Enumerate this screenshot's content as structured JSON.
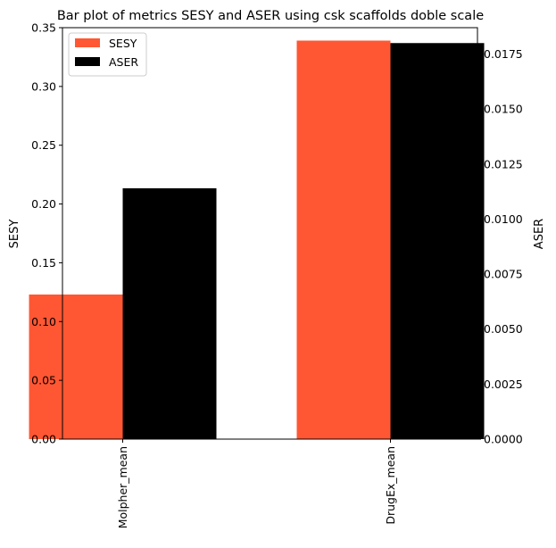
{
  "chart_data": {
    "type": "bar",
    "title": "Bar plot of metrics SESY and ASER using csk scaffolds doble scale",
    "categories": [
      "Molpher_mean",
      "DrugEx_mean"
    ],
    "series": [
      {
        "name": "SESY",
        "axis": "left",
        "color": "#FF5733",
        "values": [
          0.123,
          0.339
        ]
      },
      {
        "name": "ASER",
        "axis": "right",
        "color": "#000000",
        "values": [
          0.0114,
          0.018
        ]
      }
    ],
    "ylabel_left": "SESY",
    "ylabel_right": "ASER",
    "ylim_left": [
      0,
      0.35
    ],
    "ylim_right": [
      0,
      0.0187
    ],
    "yticks_left": [
      "0.00",
      "0.05",
      "0.10",
      "0.15",
      "0.20",
      "0.25",
      "0.30",
      "0.35"
    ],
    "yticks_right": [
      "0.0000",
      "0.0025",
      "0.0050",
      "0.0075",
      "0.0100",
      "0.0125",
      "0.0150",
      "0.0175"
    ],
    "legend_position": "top-left",
    "grid": false
  }
}
